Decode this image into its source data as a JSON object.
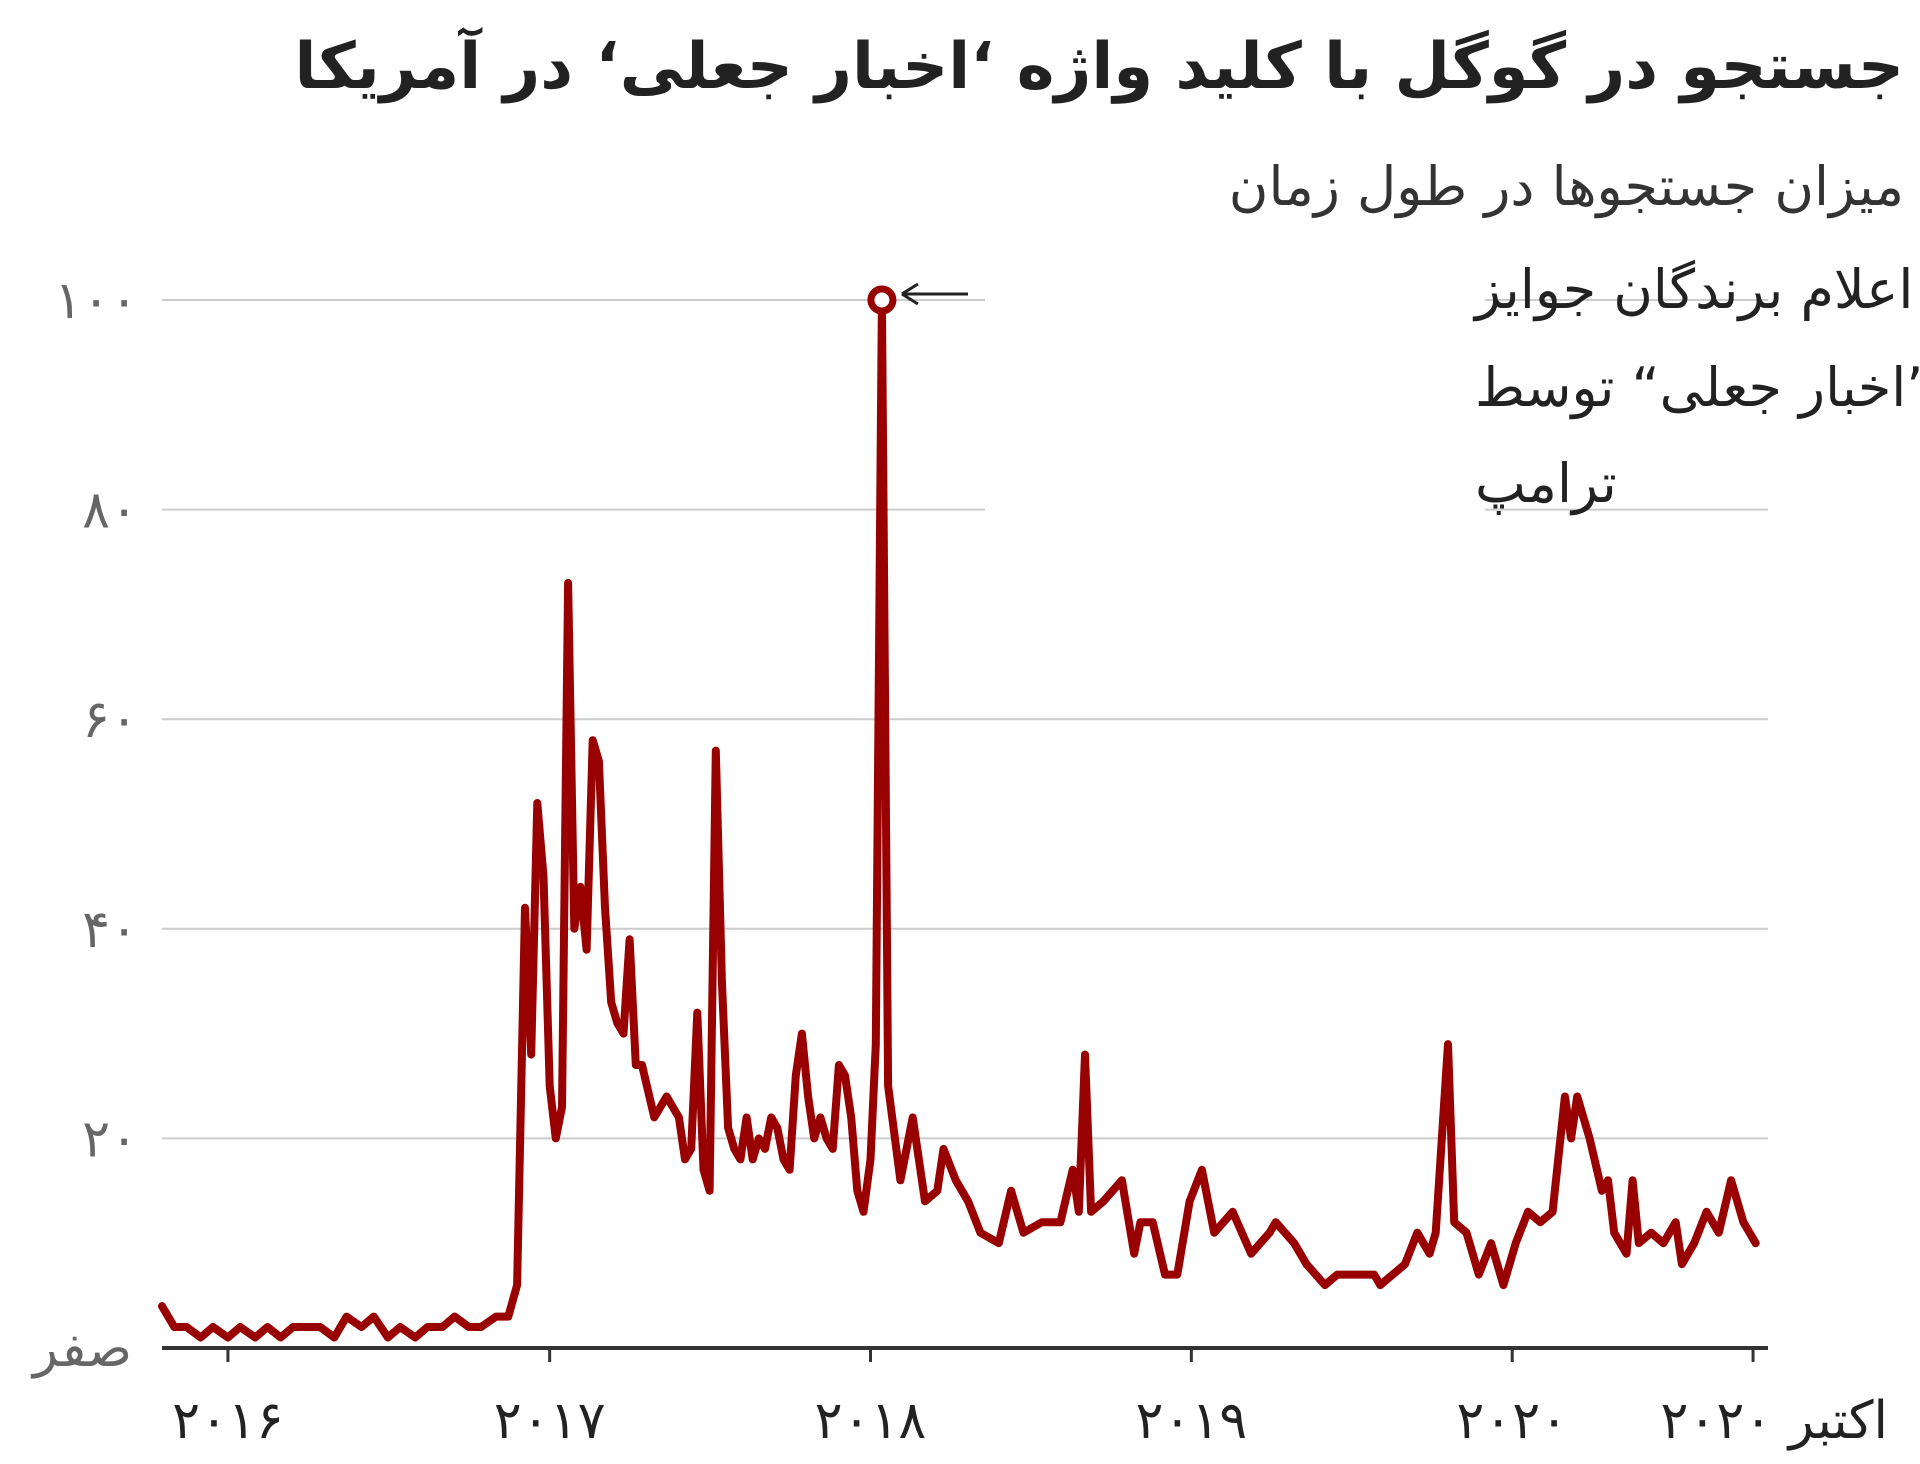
{
  "title": "جستجو در گوگل با کلید واژه ‘اخبار جعلی‘ در آمریکا",
  "subtitle": "میزان جستجوها در طول زمان",
  "colors": {
    "line": "#990000",
    "grid": "#cccccc",
    "axis": "#333333"
  },
  "chart_data": {
    "type": "line",
    "title": "جستجو در گوگل با کلید واژه ‘اخبار جعلی‘ در آمریکا",
    "subtitle": "میزان جستجوها در طول زمان",
    "ylim": [
      0,
      100
    ],
    "y_ticks": [
      {
        "value": 0,
        "label": "صفر"
      },
      {
        "value": 20,
        "label": "۲۰"
      },
      {
        "value": 40,
        "label": "۴۰"
      },
      {
        "value": 60,
        "label": "۶۰"
      },
      {
        "value": 80,
        "label": "۸۰"
      },
      {
        "value": 100,
        "label": "۱۰۰"
      }
    ],
    "x_ticks": [
      {
        "date": "2016-01-01",
        "label": "۲۰۱۶"
      },
      {
        "date": "2017-01-01",
        "label": "۲۰۱۷"
      },
      {
        "date": "2018-01-01",
        "label": "۲۰۱۸"
      },
      {
        "date": "2019-01-01",
        "label": "۲۰۱۹"
      },
      {
        "date": "2020-01-01",
        "label": "۲۰۲۰"
      },
      {
        "date": "2020-10-01",
        "label": "اکتبر ۲۰۲۰"
      }
    ],
    "x_range": [
      "2015-10-18",
      "2020-10-18"
    ],
    "grid": true,
    "annotation": {
      "date": "2018-01-14",
      "value": 100,
      "lines": [
        "اعلام برندگان جوایز",
        "”اخبار جعلی“ توسط",
        "ترامپ"
      ]
    },
    "series": [
      {
        "values": [
          [
            "2015-10-18",
            4
          ],
          [
            "2015-11-01",
            2
          ],
          [
            "2015-11-15",
            2
          ],
          [
            "2015-12-01",
            1
          ],
          [
            "2015-12-15",
            2
          ],
          [
            "2016-01-01",
            1
          ],
          [
            "2016-01-15",
            2
          ],
          [
            "2016-02-01",
            1
          ],
          [
            "2016-02-15",
            2
          ],
          [
            "2016-03-01",
            1
          ],
          [
            "2016-03-15",
            2
          ],
          [
            "2016-04-01",
            2
          ],
          [
            "2016-04-15",
            2
          ],
          [
            "2016-05-01",
            1
          ],
          [
            "2016-05-15",
            3
          ],
          [
            "2016-06-01",
            2
          ],
          [
            "2016-06-15",
            3
          ],
          [
            "2016-07-01",
            1
          ],
          [
            "2016-07-15",
            2
          ],
          [
            "2016-08-01",
            1
          ],
          [
            "2016-08-15",
            2
          ],
          [
            "2016-09-01",
            2
          ],
          [
            "2016-09-15",
            3
          ],
          [
            "2016-10-01",
            2
          ],
          [
            "2016-10-15",
            2
          ],
          [
            "2016-11-01",
            3
          ],
          [
            "2016-11-15",
            3
          ],
          [
            "2016-11-25",
            6
          ],
          [
            "2016-12-04",
            42
          ],
          [
            "2016-12-11",
            28
          ],
          [
            "2016-12-18",
            52
          ],
          [
            "2016-12-25",
            45
          ],
          [
            "2017-01-01",
            25
          ],
          [
            "2017-01-08",
            20
          ],
          [
            "2017-01-15",
            23
          ],
          [
            "2017-01-22",
            73
          ],
          [
            "2017-01-29",
            40
          ],
          [
            "2017-02-05",
            44
          ],
          [
            "2017-02-12",
            38
          ],
          [
            "2017-02-19",
            58
          ],
          [
            "2017-02-26",
            56
          ],
          [
            "2017-03-05",
            42
          ],
          [
            "2017-03-12",
            33
          ],
          [
            "2017-03-19",
            31
          ],
          [
            "2017-03-26",
            30
          ],
          [
            "2017-04-02",
            39
          ],
          [
            "2017-04-09",
            27
          ],
          [
            "2017-04-16",
            27
          ],
          [
            "2017-04-30",
            22
          ],
          [
            "2017-05-14",
            24
          ],
          [
            "2017-05-28",
            22
          ],
          [
            "2017-06-04",
            18
          ],
          [
            "2017-06-11",
            19
          ],
          [
            "2017-06-18",
            32
          ],
          [
            "2017-06-25",
            17
          ],
          [
            "2017-07-02",
            15
          ],
          [
            "2017-07-09",
            57
          ],
          [
            "2017-07-16",
            35
          ],
          [
            "2017-07-23",
            21
          ],
          [
            "2017-07-30",
            19
          ],
          [
            "2017-08-06",
            18
          ],
          [
            "2017-08-13",
            22
          ],
          [
            "2017-08-20",
            18
          ],
          [
            "2017-08-27",
            20
          ],
          [
            "2017-09-03",
            19
          ],
          [
            "2017-09-10",
            22
          ],
          [
            "2017-09-17",
            21
          ],
          [
            "2017-09-24",
            18
          ],
          [
            "2017-10-01",
            17
          ],
          [
            "2017-10-08",
            26
          ],
          [
            "2017-10-15",
            30
          ],
          [
            "2017-10-22",
            24
          ],
          [
            "2017-10-29",
            20
          ],
          [
            "2017-11-05",
            22
          ],
          [
            "2017-11-12",
            20
          ],
          [
            "2017-11-19",
            19
          ],
          [
            "2017-11-26",
            27
          ],
          [
            "2017-12-03",
            26
          ],
          [
            "2017-12-10",
            22
          ],
          [
            "2017-12-17",
            15
          ],
          [
            "2017-12-24",
            13
          ],
          [
            "2018-01-01",
            18
          ],
          [
            "2018-01-07",
            29
          ],
          [
            "2018-01-14",
            100
          ],
          [
            "2018-01-21",
            25
          ],
          [
            "2018-02-04",
            16
          ],
          [
            "2018-02-18",
            22
          ],
          [
            "2018-03-04",
            14
          ],
          [
            "2018-03-18",
            15
          ],
          [
            "2018-03-25",
            19
          ],
          [
            "2018-04-08",
            16
          ],
          [
            "2018-04-22",
            14
          ],
          [
            "2018-05-06",
            11
          ],
          [
            "2018-05-27",
            10
          ],
          [
            "2018-06-10",
            15
          ],
          [
            "2018-06-24",
            11
          ],
          [
            "2018-07-15",
            12
          ],
          [
            "2018-08-05",
            12
          ],
          [
            "2018-08-19",
            17
          ],
          [
            "2018-08-26",
            13
          ],
          [
            "2018-09-02",
            28
          ],
          [
            "2018-09-09",
            13
          ],
          [
            "2018-09-23",
            14
          ],
          [
            "2018-10-14",
            16
          ],
          [
            "2018-10-28",
            9
          ],
          [
            "2018-11-04",
            12
          ],
          [
            "2018-11-18",
            12
          ],
          [
            "2018-12-02",
            7
          ],
          [
            "2018-12-16",
            7
          ],
          [
            "2018-12-30",
            14
          ],
          [
            "2019-01-13",
            17
          ],
          [
            "2019-01-27",
            11
          ],
          [
            "2019-02-17",
            13
          ],
          [
            "2019-03-10",
            9
          ],
          [
            "2019-03-31",
            11
          ],
          [
            "2019-04-07",
            12
          ],
          [
            "2019-04-28",
            10
          ],
          [
            "2019-05-12",
            8
          ],
          [
            "2019-06-02",
            6
          ],
          [
            "2019-06-16",
            7
          ],
          [
            "2019-07-07",
            7
          ],
          [
            "2019-07-28",
            7
          ],
          [
            "2019-08-04",
            6
          ],
          [
            "2019-08-18",
            7
          ],
          [
            "2019-09-01",
            8
          ],
          [
            "2019-09-15",
            11
          ],
          [
            "2019-09-29",
            9
          ],
          [
            "2019-10-06",
            11
          ],
          [
            "2019-10-20",
            29
          ],
          [
            "2019-10-27",
            12
          ],
          [
            "2019-11-10",
            11
          ],
          [
            "2019-11-24",
            7
          ],
          [
            "2019-12-08",
            10
          ],
          [
            "2019-12-22",
            6
          ],
          [
            "2020-01-05",
            10
          ],
          [
            "2020-01-19",
            13
          ],
          [
            "2020-02-02",
            12
          ],
          [
            "2020-02-16",
            13
          ],
          [
            "2020-03-01",
            24
          ],
          [
            "2020-03-08",
            20
          ],
          [
            "2020-03-15",
            24
          ],
          [
            "2020-03-29",
            20
          ],
          [
            "2020-04-12",
            15
          ],
          [
            "2020-04-19",
            16
          ],
          [
            "2020-04-26",
            11
          ],
          [
            "2020-05-10",
            9
          ],
          [
            "2020-05-17",
            16
          ],
          [
            "2020-05-24",
            10
          ],
          [
            "2020-06-07",
            11
          ],
          [
            "2020-06-21",
            10
          ],
          [
            "2020-07-05",
            12
          ],
          [
            "2020-07-12",
            8
          ],
          [
            "2020-07-26",
            10
          ],
          [
            "2020-08-09",
            13
          ],
          [
            "2020-08-23",
            11
          ],
          [
            "2020-09-06",
            16
          ],
          [
            "2020-09-20",
            12
          ],
          [
            "2020-10-04",
            10
          ]
        ]
      }
    ]
  }
}
